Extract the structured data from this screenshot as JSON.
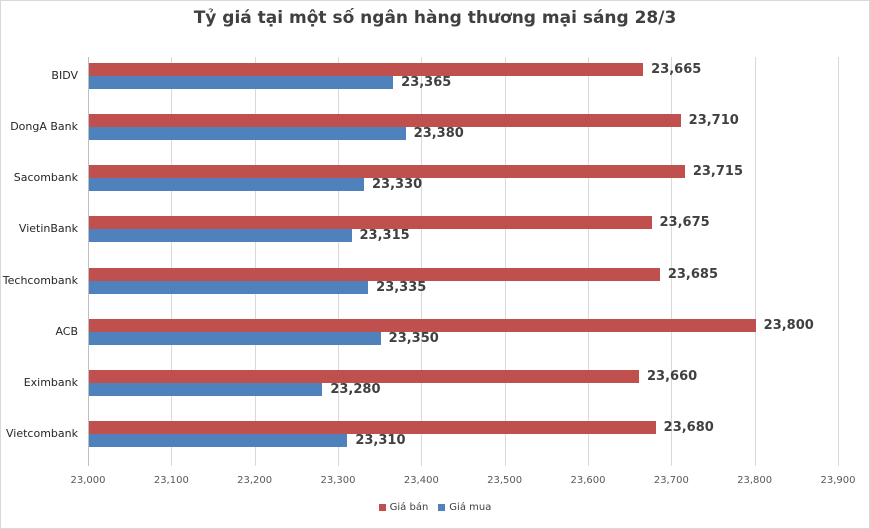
{
  "chart_data": {
    "type": "bar",
    "orientation": "horizontal",
    "title": "Tỷ giá tại một số ngân hàng thương mại sáng 28/3",
    "xlabel": "",
    "ylabel": "",
    "categories": [
      "BIDV",
      "DongA Bank",
      "Sacombank",
      "VietinBank",
      "Techcombank",
      "ACB",
      "Eximbank",
      "Vietcombank"
    ],
    "series": [
      {
        "name": "Giá bán",
        "color": "#c0504d",
        "values": [
          23665,
          23710,
          23715,
          23675,
          23685,
          23800,
          23660,
          23680
        ],
        "labels": [
          "23,665",
          "23,710",
          "23,715",
          "23,675",
          "23,685",
          "23,800",
          "23,660",
          "23,680"
        ]
      },
      {
        "name": "Giá mua",
        "color": "#4f81bd",
        "values": [
          23365,
          23380,
          23330,
          23315,
          23335,
          23350,
          23280,
          23310
        ],
        "labels": [
          "23,365",
          "23,380",
          "23,330",
          "23,315",
          "23,335",
          "23,350",
          "23,280",
          "23,310"
        ]
      }
    ],
    "xlim": [
      23000,
      23900
    ],
    "x_ticks": [
      "23,000",
      "23,100",
      "23,200",
      "23,300",
      "23,400",
      "23,500",
      "23,600",
      "23,700",
      "23,800",
      "23,900"
    ],
    "grid": true,
    "legend_position": "bottom"
  },
  "legend": {
    "sell_label": "Giá bán",
    "buy_label": "Giá mua"
  }
}
